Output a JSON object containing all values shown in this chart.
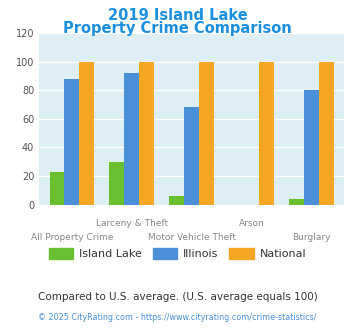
{
  "title_line1": "2019 Island Lake",
  "title_line2": "Property Crime Comparison",
  "categories": [
    "All Property Crime",
    "Larceny & Theft",
    "Motor Vehicle Theft",
    "Arson",
    "Burglary"
  ],
  "xticklabels_top": [
    "",
    "Larceny & Theft",
    "",
    "Arson",
    ""
  ],
  "xticklabels_bottom": [
    "All Property Crime",
    "",
    "Motor Vehicle Theft",
    "",
    "Burglary"
  ],
  "island_lake": [
    23,
    30,
    6,
    0,
    4
  ],
  "illinois": [
    88,
    92,
    68,
    0,
    80
  ],
  "national": [
    100,
    100,
    100,
    100,
    100
  ],
  "colors": {
    "island_lake": "#6abf2e",
    "illinois": "#4a90d9",
    "national": "#f5a623"
  },
  "ylim": [
    0,
    120
  ],
  "yticks": [
    0,
    20,
    40,
    60,
    80,
    100,
    120
  ],
  "background_color": "#ddeef5",
  "title_color": "#1a8fe0",
  "subtitle_text": "Compared to U.S. average. (U.S. average equals 100)",
  "subtitle_color": "#333333",
  "footer_text": "© 2025 CityRating.com - https://www.cityrating.com/crime-statistics/",
  "footer_color": "#4a90d9",
  "legend_labels": [
    "Island Lake",
    "Illinois",
    "National"
  ]
}
